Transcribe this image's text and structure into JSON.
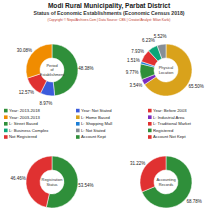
{
  "title": "Modi Rural Municipality, Parbat District",
  "subtitle": "Status of Economic Establishments (Economic Census 2018)",
  "credit": "(Copyright © NepalArchives.Com | Data Source: CBS | Creator/Analyst: Milan Karki)",
  "chart_data": [
    {
      "type": "pie",
      "title": "Period of Establishment",
      "categories": [
        "Year: 2013-2018",
        "Year: Not Stated",
        "Year: Before 2003",
        "Year: 2003-2013"
      ],
      "values": [
        48.38,
        8.97,
        12.57,
        30.08
      ],
      "value_labels": [
        "48.38%",
        "8.97%",
        "12.57%",
        "30.08%"
      ],
      "colors": [
        "#2f8f3a",
        "#3b5bdb",
        "#e03131",
        "#f08c00"
      ],
      "data_labels": true
    },
    {
      "type": "pie",
      "title": "Physical Location",
      "categories": [
        "L: Home Based",
        "L: Industrial Area",
        "L: Street Based",
        "L: Shopping Mall",
        "L: Traditional Market",
        "L: Business Complex",
        "L: Not Stated"
      ],
      "values": [
        65.5,
        3.54,
        9.77,
        1.51,
        7.93,
        6.23,
        5.52
      ],
      "value_labels": [
        "65.50%",
        "3.54%",
        "9.77%",
        "1.51%",
        "7.93%",
        "6.23%",
        "5.52%"
      ],
      "colors": [
        "#d9a21b",
        "#7b2cbf",
        "#2f8f3a",
        "#1c7ed6",
        "#e03131",
        "#0ca678",
        "#868e96"
      ],
      "data_labels": true
    },
    {
      "type": "pie",
      "title": "Registration Status",
      "categories": [
        "Registered",
        "Not Registered"
      ],
      "values": [
        53.54,
        46.46
      ],
      "value_labels": [
        "53.54%",
        "46.46%"
      ],
      "colors": [
        "#2f8f3a",
        "#e03131"
      ],
      "data_labels": true
    },
    {
      "type": "pie",
      "title": "Accounting Records",
      "categories": [
        "Account Kept",
        "Account Not Kept"
      ],
      "values": [
        68.78,
        31.22
      ],
      "value_labels": [
        "68.78%",
        "31.22%"
      ],
      "colors": [
        "#2f8f3a",
        "#e03131"
      ],
      "data_labels": true
    }
  ]
}
